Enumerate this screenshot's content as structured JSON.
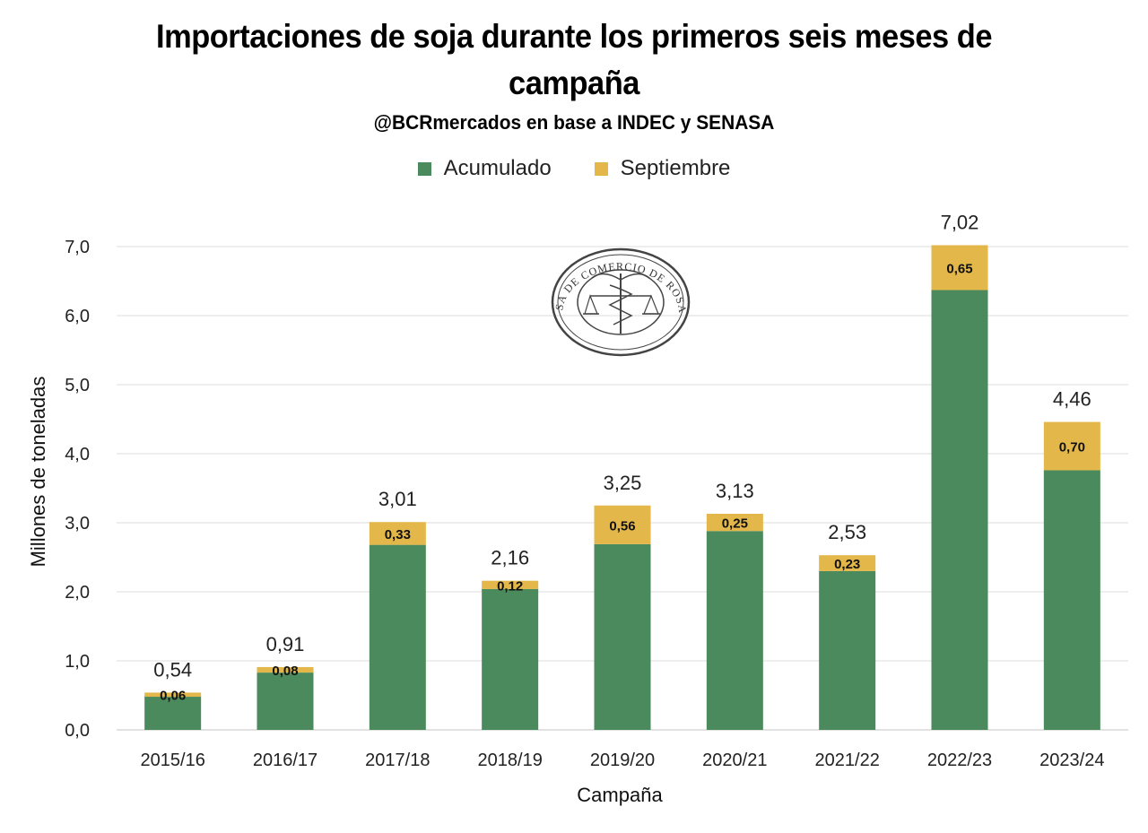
{
  "chart_data": {
    "type": "bar",
    "stacked": true,
    "title": "Importaciones de soja durante los primeros seis meses de campaña",
    "title_lines": [
      "Importaciones de soja durante los primeros seis meses de",
      "campaña"
    ],
    "subtitle": "@BCRmercados en base a INDEC y SENASA",
    "xlabel": "Campaña",
    "ylabel": "Millones de toneladas",
    "ylim": [
      0,
      7.0
    ],
    "yticks": [
      "0,0",
      "1,0",
      "2,0",
      "3,0",
      "4,0",
      "5,0",
      "6,0",
      "7,0"
    ],
    "grid": true,
    "legend_position": "top",
    "categories": [
      "2015/16",
      "2016/17",
      "2017/18",
      "2018/19",
      "2019/20",
      "2020/21",
      "2021/22",
      "2022/23",
      "2023/24"
    ],
    "series": [
      {
        "name": "Acumulado",
        "color": "#4a8a5c",
        "values": [
          0.48,
          0.83,
          2.68,
          2.04,
          2.69,
          2.88,
          2.3,
          6.37,
          3.76
        ]
      },
      {
        "name": "Septiembre",
        "color": "#e3b74a",
        "values": [
          0.06,
          0.08,
          0.33,
          0.12,
          0.56,
          0.25,
          0.23,
          0.65,
          0.7
        ],
        "labels": [
          "0,06",
          "0,08",
          "0,33",
          "0,12",
          "0,56",
          "0,25",
          "0,23",
          "0,65",
          "0,70"
        ]
      }
    ],
    "totals": [
      0.54,
      0.91,
      3.01,
      2.16,
      3.25,
      3.13,
      2.53,
      7.02,
      4.46
    ],
    "total_labels": [
      "0,54",
      "0,91",
      "3,01",
      "2,16",
      "3,25",
      "3,13",
      "2,53",
      "7,02",
      "4,46"
    ]
  },
  "watermark": {
    "text": "BOLSA DE COMERCIO DE ROSARIO",
    "icon": "caduceus-scales-seal-icon"
  }
}
